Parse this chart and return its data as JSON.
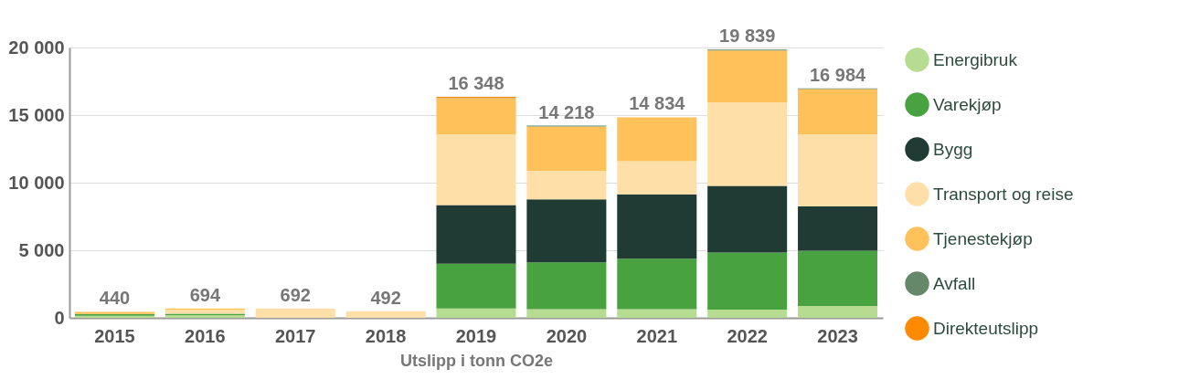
{
  "chart_data": {
    "type": "bar",
    "stacked": true,
    "xlabel": "Utslipp i tonn CO2e",
    "categories": [
      "2015",
      "2016",
      "2017",
      "2018",
      "2019",
      "2020",
      "2021",
      "2022",
      "2023"
    ],
    "series": [
      {
        "name": "Energibruk",
        "color": "#b5dc90",
        "values": [
          160,
          200,
          0,
          0,
          700,
          650,
          650,
          600,
          870
        ]
      },
      {
        "name": "Varekjøp",
        "color": "#48a23f",
        "values": [
          120,
          110,
          0,
          0,
          3300,
          3460,
          3720,
          4230,
          4090
        ]
      },
      {
        "name": "Bygg",
        "color": "#1f3b33",
        "values": [
          0,
          0,
          0,
          0,
          4350,
          4660,
          4770,
          4940,
          3290
        ]
      },
      {
        "name": "Transport og reise",
        "color": "#ffdfa8",
        "values": [
          null,
          280,
          692,
          492,
          5210,
          2110,
          2450,
          6180,
          5310
        ]
      },
      {
        "name": "Tjenestekjøp",
        "color": "#ffc15a",
        "values": [
          160,
          100,
          0,
          0,
          2700,
          3270,
          3244,
          3830,
          3360
        ]
      },
      {
        "name": "Avfall",
        "color": "#65876a",
        "values": [
          0,
          0,
          null,
          null,
          30,
          70,
          null,
          60,
          60
        ]
      },
      {
        "name": "Direkteutslipp",
        "color": "#ff8a00",
        "values": [
          0,
          0,
          0,
          0,
          60,
          0,
          0,
          0,
          0
        ]
      }
    ],
    "totals": [
      "440",
      "694",
      "692",
      "492",
      "16 348",
      "14 218",
      "14 834",
      "19 839",
      "16 984"
    ],
    "ylim": [
      0,
      20000
    ],
    "yticks": [
      0,
      {
        "value": 5000,
        "label": "5 000"
      },
      {
        "value": 10000,
        "label": "10 000"
      },
      {
        "value": 15000,
        "label": "15 000"
      },
      {
        "value": 20000,
        "label": "20 000"
      }
    ],
    "grid": "y",
    "legend": "right"
  }
}
